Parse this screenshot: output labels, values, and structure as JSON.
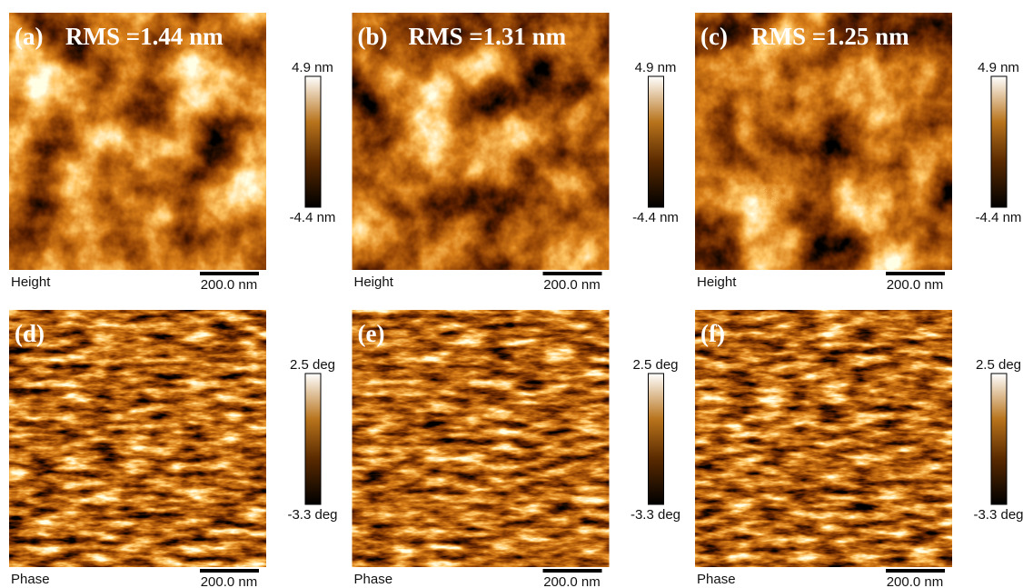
{
  "panels": [
    {
      "label": "(a)",
      "rms": "RMS =1.44 nm",
      "scale_max": "4.9 nm",
      "scale_min": "-4.4 nm",
      "channel": "Height",
      "scale_bar": "200.0 nm"
    },
    {
      "label": "(b)",
      "rms": "RMS =1.31 nm",
      "scale_max": "4.9 nm",
      "scale_min": "-4.4 nm",
      "channel": "Height",
      "scale_bar": "200.0 nm"
    },
    {
      "label": "(c)",
      "rms": "RMS =1.25 nm",
      "scale_max": "4.9 nm",
      "scale_min": "-4.4 nm",
      "channel": "Height",
      "scale_bar": "200.0 nm"
    },
    {
      "label": "(d)",
      "scale_max": "2.5 deg",
      "scale_min": "-3.3 deg",
      "channel": "Phase",
      "scale_bar": "200.0 nm"
    },
    {
      "label": "(e)",
      "scale_max": "2.5 deg",
      "scale_min": "-3.3 deg",
      "channel": "Phase",
      "scale_bar": "200.0 nm"
    },
    {
      "label": "(f)",
      "scale_max": "2.5 deg",
      "scale_min": "-3.3 deg",
      "channel": "Phase",
      "scale_bar": "200.0 nm"
    }
  ]
}
